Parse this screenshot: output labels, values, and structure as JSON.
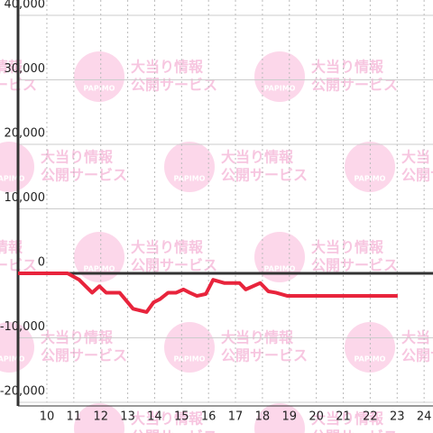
{
  "chart_data": {
    "type": "line",
    "watermark": {
      "brand": "PAPIMO",
      "line1": "大当り情報",
      "line2": "公開サービス"
    },
    "x": [
      8.93,
      10.77,
      11.2,
      11.68,
      11.95,
      12.2,
      12.7,
      13.2,
      13.7,
      13.96,
      14.2,
      14.5,
      14.8,
      15.07,
      15.3,
      15.57,
      15.9,
      16.17,
      16.58,
      17.15,
      17.38,
      17.92,
      18.22,
      18.5,
      18.93,
      23.02
    ],
    "series": [
      {
        "color": "#e8243c",
        "values": [
          0,
          0,
          -1000,
          -3000,
          -2000,
          -3000,
          -3000,
          -5500,
          -6000,
          -4500,
          -4000,
          -3000,
          -3000,
          -2500,
          -3000,
          -3500,
          -3200,
          -1000,
          -1500,
          -1500,
          -2500,
          -1500,
          -2800,
          -3000,
          -3500,
          -3500
        ]
      }
    ],
    "xlim": [
      8.93,
      24.33
    ],
    "xticks": [
      10,
      11,
      12,
      13,
      14,
      15,
      16,
      17,
      18,
      19,
      20,
      21,
      22,
      23,
      24
    ],
    "ylim": [
      -20000,
      40000
    ],
    "yticks": [
      {
        "value": -20000,
        "label": "-20,000"
      },
      {
        "value": -10000,
        "label": "-10,000"
      },
      0,
      {
        "value": 10000,
        "label": "10,000"
      },
      {
        "value": 20000,
        "label": "20,000"
      },
      {
        "value": 30000,
        "label": "30,000"
      },
      {
        "value": 40000,
        "label": "40,000"
      }
    ],
    "grid": true
  }
}
